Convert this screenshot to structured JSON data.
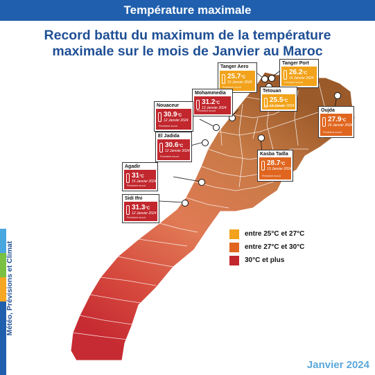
{
  "banner": {
    "title": "Température maximale"
  },
  "headline": {
    "line1": "Record battu du maximum de la température",
    "line2": "maximale sur le mois de Janvier au Maroc"
  },
  "side": {
    "label": "Météo, Prévisions et Climat",
    "stripes": [
      "#49a7e0",
      "#7ac143",
      "#f5a623",
      "#1f5fad"
    ]
  },
  "legend": [
    {
      "label": "entre 25°C et 27°C",
      "color": "#f2a31b"
    },
    {
      "label": "entre 27°C et 30°C",
      "color": "#e0661f"
    },
    {
      "label": "30°C et plus",
      "color": "#c1272d"
    }
  ],
  "footer": {
    "label": "Janvier 2024"
  },
  "stations": [
    {
      "city": "Tanger Aero",
      "value": "25.7",
      "unit": "°C",
      "date": "15 Janvier 2024",
      "prev": "Précédent record",
      "color": "#f2a31b"
    },
    {
      "city": "Tanger Port",
      "value": "26.2",
      "unit": "°C",
      "date": "14 Janvier 2024",
      "prev": "Précédent record",
      "color": "#f2a31b"
    },
    {
      "city": "Tetouan",
      "value": "25.5",
      "unit": "°C",
      "date": "14 Janvier 2024",
      "prev": "Précédent record",
      "color": "#f2a31b"
    },
    {
      "city": "Mohammedia",
      "value": "31.2",
      "unit": "°C",
      "date": "13 Janvier 2024",
      "prev": "Précédent record",
      "color": "#c1272d"
    },
    {
      "city": "Nouaceur",
      "value": "30.9",
      "unit": "°C",
      "date": "12 Janvier 2024",
      "prev": "Précédent record",
      "color": "#c1272d"
    },
    {
      "city": "El Jadida",
      "value": "30.6",
      "unit": "°C",
      "date": "12 Janvier 2024",
      "prev": "Précédent record",
      "color": "#c1272d"
    },
    {
      "city": "Oujda",
      "value": "27.9",
      "unit": "°C",
      "date": "26 Janvier 2024",
      "prev": "Précédent record",
      "color": "#e0661f"
    },
    {
      "city": "Kasba Tadla",
      "value": "28.7",
      "unit": "°C",
      "date": "13 Janvier 2024",
      "prev": "Précédent record",
      "color": "#e0661f"
    },
    {
      "city": "Agadir",
      "value": "31",
      "unit": "°C",
      "date": "15 Janvier 2024",
      "prev": "Précédent record",
      "color": "#c1272d"
    },
    {
      "city": "Sidi Ifni",
      "value": "31.3",
      "unit": "°C",
      "date": "12 Janvier 2024",
      "prev": "Précédent record",
      "color": "#c1272d"
    }
  ]
}
